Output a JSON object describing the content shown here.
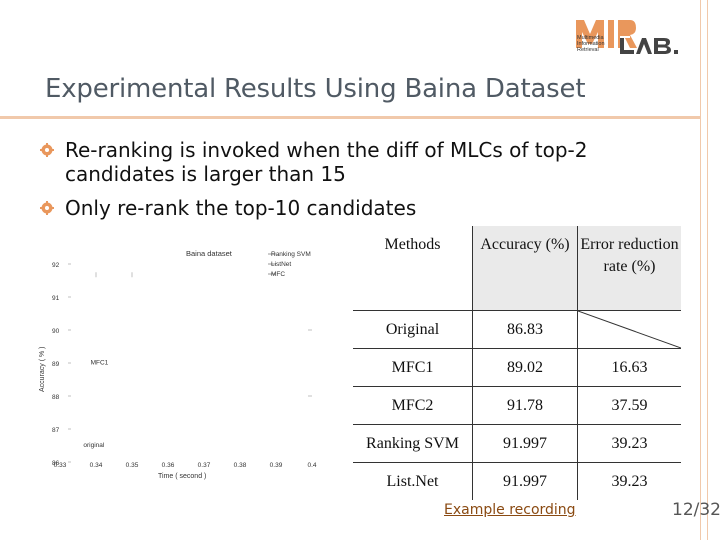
{
  "slide": {
    "title": "Experimental Results Using Baina Dataset",
    "bullets": [
      "Re-ranking is invoked when the diff of MLCs of top-2 candidates is larger than 15",
      "Only re-rank the top-10 candidates"
    ],
    "link_text": "Example recording",
    "page_number": "12/32"
  },
  "logo": {
    "letters": "MIR LAB.",
    "subtitle_lines": [
      "Multimedia",
      "Information",
      "Retrieval"
    ],
    "accent_color": "#e9975c",
    "dark_color": "#444444"
  },
  "table": {
    "headers": [
      "Methods",
      "Accuracy (%)",
      "Error reduction rate (%)"
    ],
    "rows": [
      {
        "method": "Original",
        "accuracy": "86.83",
        "error_reduction": ""
      },
      {
        "method": "MFC1",
        "accuracy": "89.02",
        "error_reduction": "16.63"
      },
      {
        "method": "MFC2",
        "accuracy": "91.78",
        "error_reduction": "37.59"
      },
      {
        "method": "Ranking SVM",
        "accuracy": "91.997",
        "error_reduction": "39.23"
      },
      {
        "method": "List.Net",
        "accuracy": "91.997",
        "error_reduction": "39.23"
      }
    ]
  },
  "chart_data": {
    "type": "scatter",
    "title": "Baina dataset",
    "xlabel": "Time ( second )",
    "ylabel": "Accuracy ( % )",
    "xlim": [
      0.33,
      0.4
    ],
    "ylim": [
      86,
      92
    ],
    "x_ticks": [
      "0.33",
      "0.34",
      "0.35",
      "0.36",
      "0.37",
      "0.38",
      "0.39",
      "0.4"
    ],
    "y_ticks": [
      "86",
      "87",
      "88",
      "89",
      "90",
      "91",
      "92"
    ],
    "legend_entries": [
      "Ranking SVM",
      "ListNet",
      "MFC"
    ],
    "legend_position": "top-right",
    "point_labels": [
      {
        "label": "MFC1",
        "x": 0.3385,
        "y": 88.95
      },
      {
        "label": "original",
        "x": 0.3365,
        "y": 86.45
      }
    ]
  }
}
